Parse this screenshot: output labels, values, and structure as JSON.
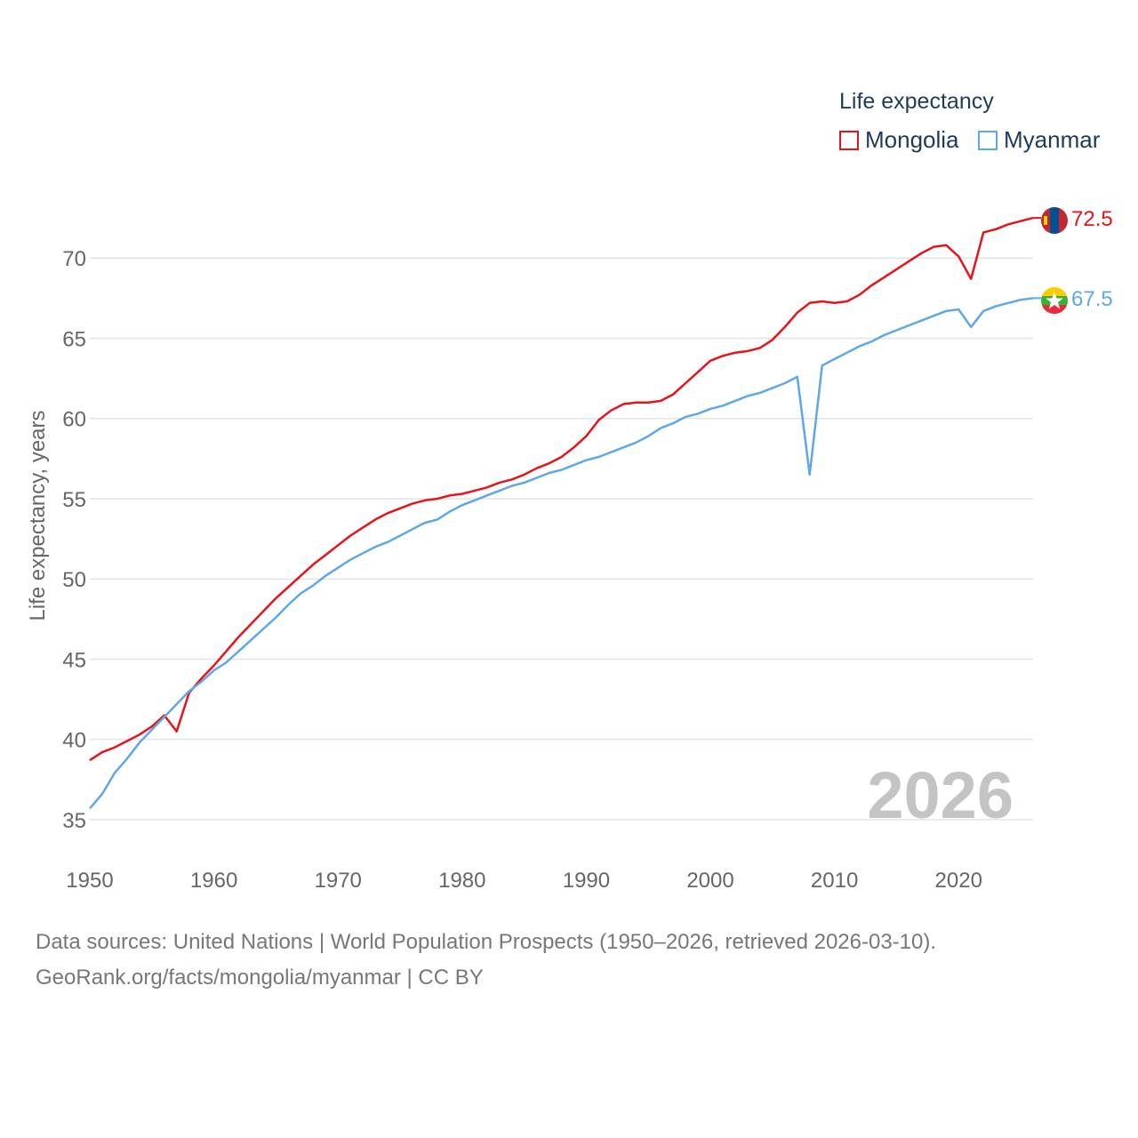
{
  "legend": {
    "title": "Life expectancy",
    "items": [
      {
        "name": "Mongolia",
        "color": "#e8131a"
      },
      {
        "name": "Myanmar",
        "color": "#5fa8e8"
      }
    ]
  },
  "footer": {
    "sources": "Data sources: United Nations | World Population Prospects (1950–2026, retrieved 2026-03-10).",
    "credit": "GeoRank.org/facts/mongolia/myanmar | CC BY"
  },
  "chart_data": {
    "type": "line",
    "title": "",
    "xlabel": "",
    "ylabel": "Life expectancy, years",
    "year_label": "2026",
    "xlim": [
      1950,
      2026
    ],
    "ylim": [
      33,
      75
    ],
    "x_ticks": [
      1950,
      1960,
      1970,
      1980,
      1990,
      2000,
      2010,
      2020
    ],
    "y_ticks": [
      35,
      40,
      45,
      50,
      55,
      60,
      65,
      70
    ],
    "grid": true,
    "legend_position": "top-right",
    "x": [
      1950,
      1951,
      1952,
      1953,
      1954,
      1955,
      1956,
      1957,
      1958,
      1959,
      1960,
      1961,
      1962,
      1963,
      1964,
      1965,
      1966,
      1967,
      1968,
      1969,
      1970,
      1971,
      1972,
      1973,
      1974,
      1975,
      1976,
      1977,
      1978,
      1979,
      1980,
      1981,
      1982,
      1983,
      1984,
      1985,
      1986,
      1987,
      1988,
      1989,
      1990,
      1991,
      1992,
      1993,
      1994,
      1995,
      1996,
      1997,
      1998,
      1999,
      2000,
      2001,
      2002,
      2003,
      2004,
      2005,
      2006,
      2007,
      2008,
      2009,
      2010,
      2011,
      2012,
      2013,
      2014,
      2015,
      2016,
      2017,
      2018,
      2019,
      2020,
      2021,
      2022,
      2023,
      2024,
      2025,
      2026
    ],
    "series": [
      {
        "name": "Mongolia",
        "color": "#e8131a",
        "end_label": "72.5",
        "values": [
          38.7,
          39.2,
          39.5,
          39.9,
          40.3,
          40.8,
          41.5,
          40.5,
          42.9,
          43.8,
          44.6,
          45.5,
          46.4,
          47.2,
          48.0,
          48.8,
          49.5,
          50.2,
          50.9,
          51.5,
          52.1,
          52.7,
          53.2,
          53.7,
          54.1,
          54.4,
          54.7,
          54.9,
          55.0,
          55.2,
          55.3,
          55.5,
          55.7,
          56.0,
          56.2,
          56.5,
          56.9,
          57.2,
          57.6,
          58.2,
          58.9,
          59.9,
          60.5,
          60.9,
          61.0,
          61.0,
          61.1,
          61.5,
          62.2,
          62.9,
          63.6,
          63.9,
          64.1,
          64.2,
          64.4,
          64.9,
          65.7,
          66.6,
          67.2,
          67.3,
          67.2,
          67.3,
          67.7,
          68.3,
          68.8,
          69.3,
          69.8,
          70.3,
          70.7,
          70.8,
          70.1,
          68.7,
          71.6,
          71.8,
          72.1,
          72.3,
          72.5
        ]
      },
      {
        "name": "Myanmar",
        "color": "#5fa8e8",
        "end_label": "67.5",
        "values": [
          35.7,
          36.6,
          37.9,
          38.8,
          39.8,
          40.6,
          41.4,
          42.2,
          43.0,
          43.6,
          44.3,
          44.8,
          45.5,
          46.2,
          46.9,
          47.6,
          48.4,
          49.1,
          49.6,
          50.2,
          50.7,
          51.2,
          51.6,
          52.0,
          52.3,
          52.7,
          53.1,
          53.5,
          53.7,
          54.2,
          54.6,
          54.9,
          55.2,
          55.5,
          55.8,
          56.0,
          56.3,
          56.6,
          56.8,
          57.1,
          57.4,
          57.6,
          57.9,
          58.2,
          58.5,
          58.9,
          59.4,
          59.7,
          60.1,
          60.3,
          60.6,
          60.8,
          61.1,
          61.4,
          61.6,
          61.9,
          62.2,
          62.6,
          56.5,
          63.3,
          63.7,
          64.1,
          64.5,
          64.8,
          65.2,
          65.5,
          65.8,
          66.1,
          66.4,
          66.7,
          66.8,
          65.7,
          66.7,
          67.0,
          67.2,
          67.4,
          67.5
        ]
      }
    ]
  }
}
